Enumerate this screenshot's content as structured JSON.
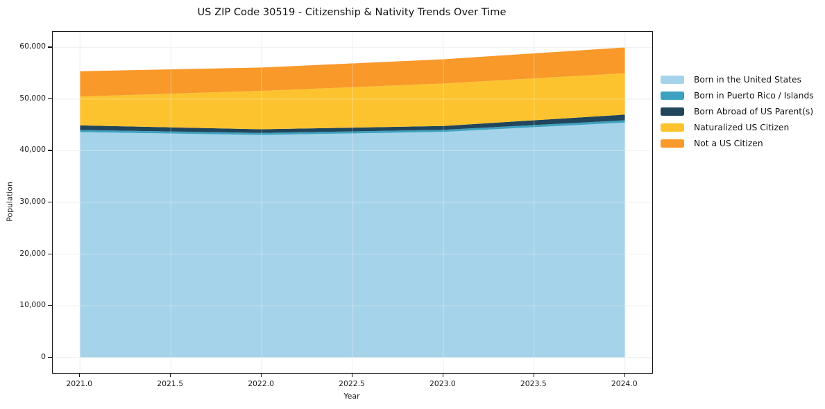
{
  "title": "US ZIP Code 30519 - Citizenship & Nativity Trends Over Time",
  "chart_data": {
    "type": "area",
    "stacked": true,
    "title": "US ZIP Code 30519 - Citizenship & Nativity Trends Over Time",
    "xlabel": "Year",
    "ylabel": "Population",
    "x": [
      2021,
      2022,
      2023,
      2024
    ],
    "xlim": [
      2020.85,
      2024.15
    ],
    "ylim": [
      -3000,
      63000
    ],
    "grid": true,
    "legend_position": "right-outside",
    "x_tick_values": [
      2021.0,
      2021.5,
      2022.0,
      2022.5,
      2023.0,
      2023.5,
      2024.0
    ],
    "x_tick_labels": [
      "2021.0",
      "2021.5",
      "2022.0",
      "2022.5",
      "2023.0",
      "2023.5",
      "2024.0"
    ],
    "y_tick_values": [
      0,
      10000,
      20000,
      30000,
      40000,
      50000,
      60000
    ],
    "y_tick_labels": [
      "0",
      "10,000",
      "20,000",
      "30,000",
      "40,000",
      "50,000",
      "60,000"
    ],
    "series": [
      {
        "name": "Born in the United States",
        "color": "#a5d3e9",
        "values": [
          43600,
          43050,
          43650,
          45450
        ]
      },
      {
        "name": "Born in Puerto Rico / Islands",
        "color": "#3da2c0",
        "values": [
          400,
          400,
          400,
          450
        ]
      },
      {
        "name": "Born Abroad of US Parent(s)",
        "color": "#21465c",
        "values": [
          900,
          700,
          750,
          1100
        ]
      },
      {
        "name": "Naturalized US Citizen",
        "color": "#fcc32f",
        "values": [
          5600,
          7450,
          8200,
          8000
        ]
      },
      {
        "name": "Not a US Citizen",
        "color": "#f8992a",
        "values": [
          4900,
          4500,
          4700,
          5000
        ]
      }
    ],
    "stack_totals": [
      55400,
      56100,
      57700,
      60000
    ],
    "colors": {
      "grid_under": "#e8e8e8",
      "grid_over": "rgba(255,255,255,0.35)",
      "spine": "#161616",
      "text": "#141414"
    }
  }
}
